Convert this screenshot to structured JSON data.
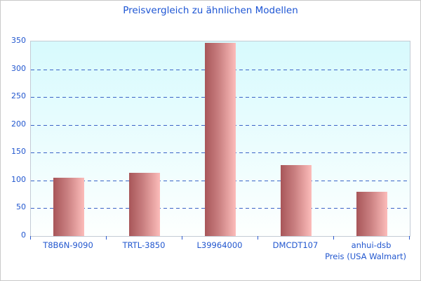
{
  "chart_data": {
    "type": "bar",
    "title": "Preisvergleich zu ähnlichen Modellen",
    "categories": [
      "T8B6N-9090",
      "TRTL-3850",
      "L39964000",
      "DMCDT107",
      "anhui-dsb"
    ],
    "values": [
      105,
      114,
      347,
      128,
      80
    ],
    "xlabel": "Preis (USA Walmart)",
    "ylabel": "",
    "ylim": [
      0,
      350
    ],
    "ytick_step": 50,
    "grid": true,
    "grid_style": "dashed",
    "legend": false,
    "colors": {
      "title_text": "#1d55d4",
      "axis_text": "#2257cf",
      "gridline": "#3b63c6",
      "tick_mark": "#2b5bd0",
      "plot_border": "#c3cbd5",
      "figure_border": "#c9c9c9",
      "plot_bg_top": "#d7fafd",
      "plot_bg_bottom": "#fdfffe",
      "bar_gradient_left": "#a85659",
      "bar_gradient_right": "#fcbcba"
    }
  }
}
